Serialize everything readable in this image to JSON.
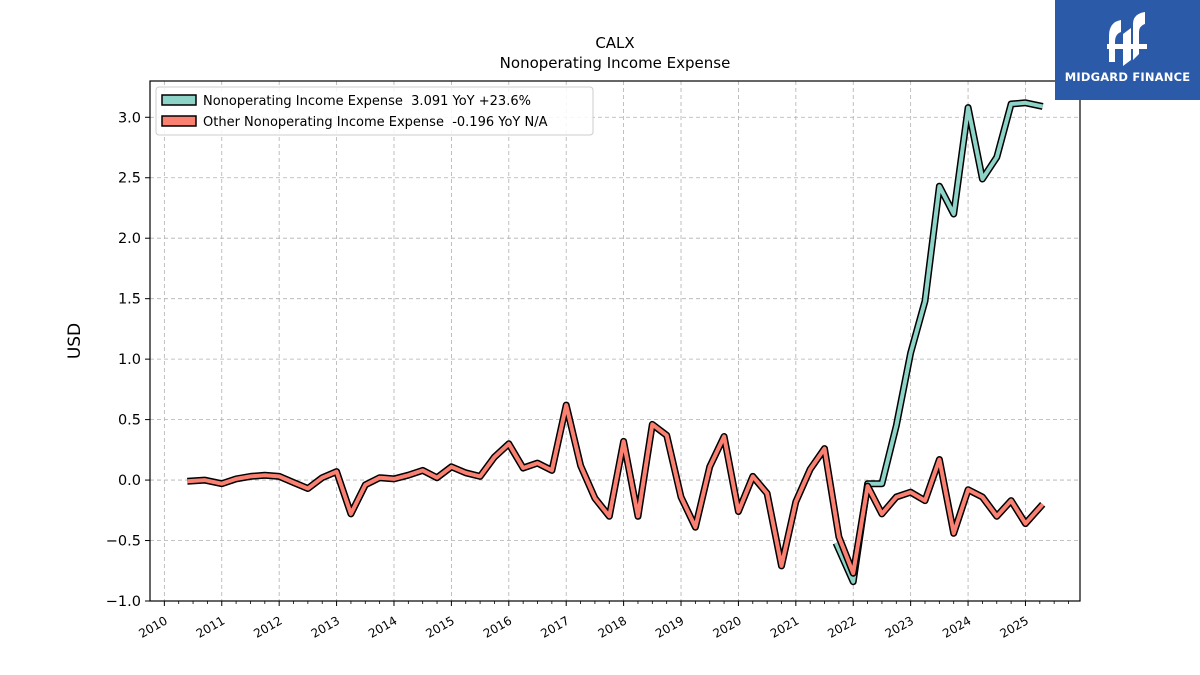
{
  "chart_data": {
    "type": "line",
    "title": "CALX",
    "subtitle": "Nonoperating Income Expense",
    "ylabel": "USD",
    "xlabel": "",
    "ylim": [
      -1.0,
      3.3
    ],
    "xlim": [
      2009.75,
      2025.95
    ],
    "yticks": [
      "−1.0",
      "−0.5",
      "0.0",
      "0.5",
      "1.0",
      "1.5",
      "2.0",
      "2.5",
      "3.0"
    ],
    "ytick_values": [
      -1.0,
      -0.5,
      0.0,
      0.5,
      1.0,
      1.5,
      2.0,
      2.5,
      3.0
    ],
    "xticks": [
      "2010",
      "2011",
      "2012",
      "2013",
      "2014",
      "2015",
      "2016",
      "2017",
      "2018",
      "2019",
      "2020",
      "2021",
      "2022",
      "2023",
      "2024",
      "2025"
    ],
    "grid": true,
    "legend_position": "upper-left",
    "series": [
      {
        "name": "Nonoperating Income Expense  3.091 YoY +23.6%",
        "color": "#8dd3c7",
        "x": [
          2021.7,
          2022.0,
          2022.25,
          2022.5,
          2022.75,
          2023.0,
          2023.25,
          2023.5,
          2023.75,
          2024.0,
          2024.25,
          2024.5,
          2024.75,
          2025.0,
          2025.3
        ],
        "y": [
          -0.52,
          -0.84,
          -0.03,
          -0.03,
          0.45,
          1.05,
          1.48,
          2.43,
          2.2,
          3.08,
          2.49,
          2.67,
          3.11,
          3.12,
          3.09
        ]
      },
      {
        "name": "Other Nonoperating Income Expense  -0.196 YoY N/A",
        "color": "#fa8072",
        "x": [
          2010.4,
          2010.7,
          2011.0,
          2011.25,
          2011.5,
          2011.75,
          2012.0,
          2012.25,
          2012.5,
          2012.75,
          2013.0,
          2013.25,
          2013.5,
          2013.75,
          2014.0,
          2014.25,
          2014.5,
          2014.75,
          2015.0,
          2015.25,
          2015.5,
          2015.75,
          2016.0,
          2016.25,
          2016.5,
          2016.75,
          2017.0,
          2017.25,
          2017.5,
          2017.75,
          2018.0,
          2018.25,
          2018.5,
          2018.75,
          2019.0,
          2019.25,
          2019.5,
          2019.75,
          2020.0,
          2020.25,
          2020.5,
          2020.75,
          2021.0,
          2021.25,
          2021.5,
          2021.75,
          2022.0,
          2022.25,
          2022.5,
          2022.75,
          2023.0,
          2023.25,
          2023.5,
          2023.75,
          2024.0,
          2024.25,
          2024.5,
          2024.75,
          2025.0,
          2025.3
        ],
        "y": [
          -0.01,
          0.0,
          -0.03,
          0.01,
          0.03,
          0.04,
          0.03,
          -0.02,
          -0.07,
          0.02,
          0.07,
          -0.28,
          -0.04,
          0.02,
          0.01,
          0.04,
          0.08,
          0.02,
          0.11,
          0.06,
          0.03,
          0.19,
          0.3,
          0.1,
          0.14,
          0.08,
          0.62,
          0.12,
          -0.15,
          -0.3,
          0.32,
          -0.3,
          0.46,
          0.37,
          -0.14,
          -0.39,
          0.11,
          0.36,
          -0.26,
          0.03,
          -0.11,
          -0.71,
          -0.18,
          0.09,
          0.26,
          -0.47,
          -0.77,
          -0.05,
          -0.28,
          -0.14,
          -0.1,
          -0.17,
          0.17,
          -0.44,
          -0.08,
          -0.14,
          -0.3,
          -0.17,
          -0.36,
          -0.2
        ]
      }
    ]
  },
  "logo": {
    "text": "MIDGARD FINANCE",
    "colour": "#2a5aa8"
  }
}
